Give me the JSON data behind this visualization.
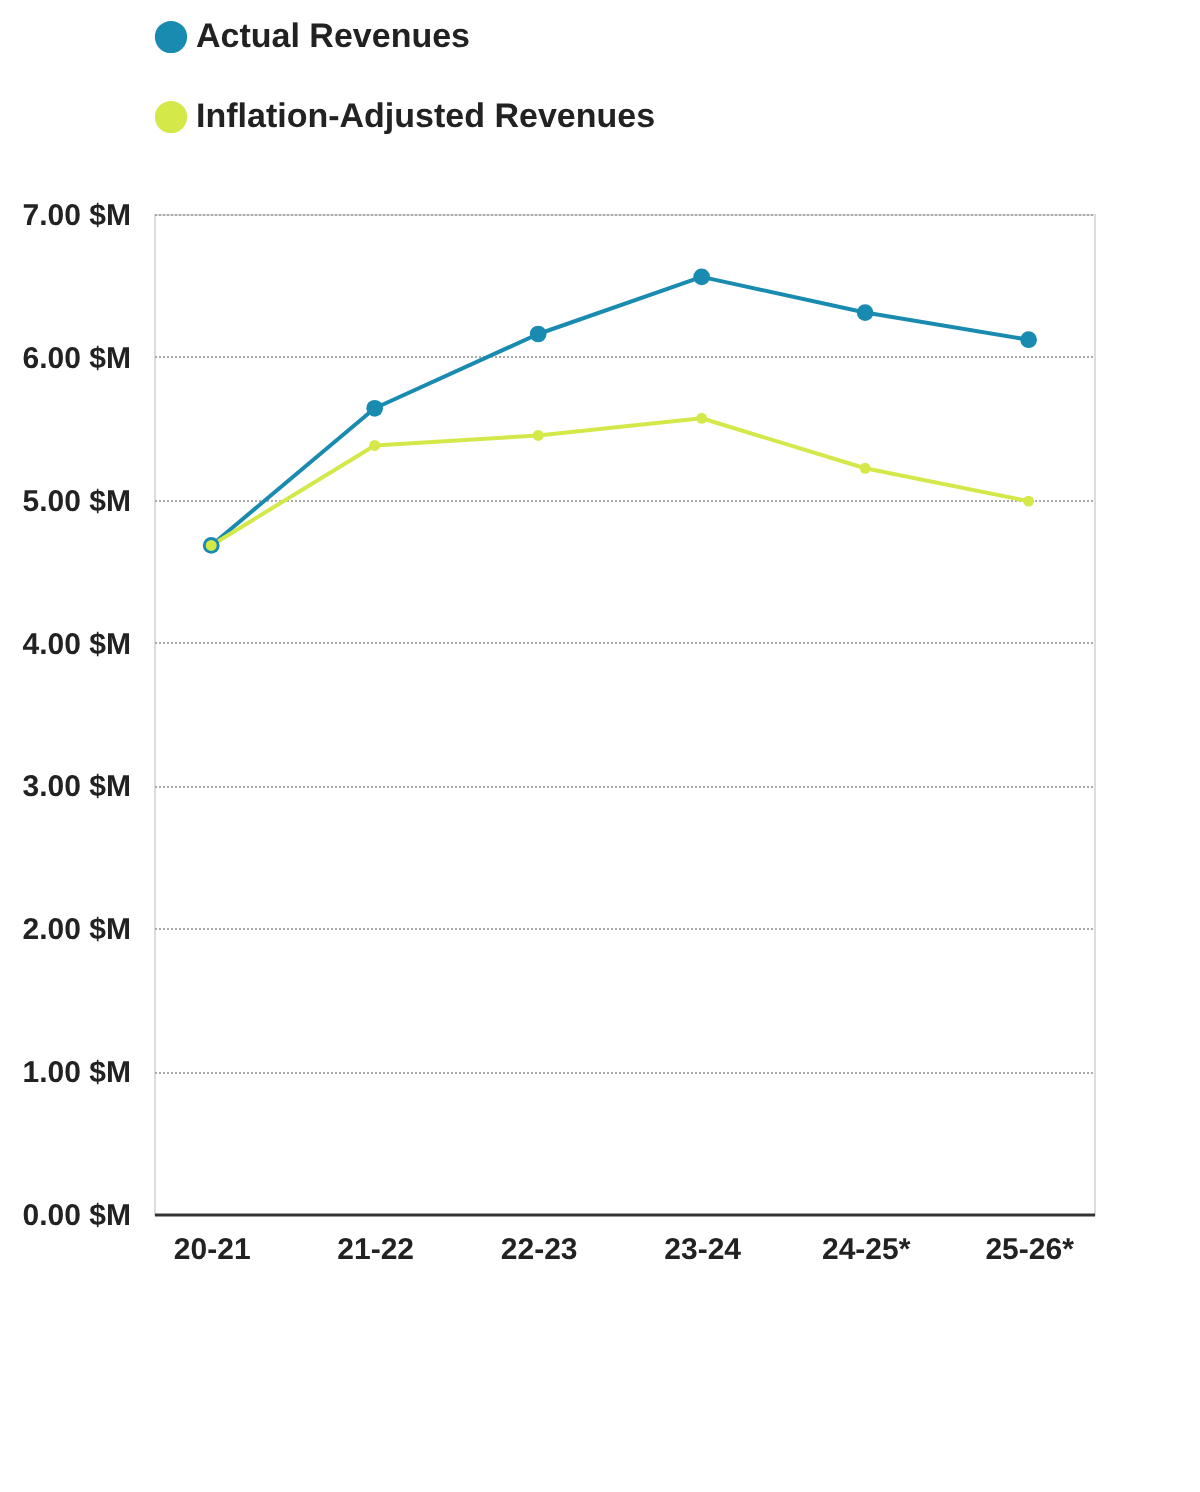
{
  "chart_data": {
    "type": "line",
    "categories": [
      "20-21",
      "21-22",
      "22-23",
      "23-24",
      "24-25*",
      "25-26*"
    ],
    "series": [
      {
        "name": "Actual Revenues",
        "color": "#1a8bb0",
        "values": [
          4.68,
          5.64,
          6.16,
          6.56,
          6.31,
          6.12
        ]
      },
      {
        "name": "Inflation-Adjusted Revenues",
        "color": "#d4e84a",
        "values": [
          4.68,
          5.38,
          5.45,
          5.57,
          5.22,
          4.99
        ]
      }
    ],
    "ylim": [
      0,
      7
    ],
    "yticks": [
      {
        "value": 0,
        "label": "0.00 $M"
      },
      {
        "value": 1,
        "label": "1.00 $M"
      },
      {
        "value": 2,
        "label": "2.00 $M"
      },
      {
        "value": 3,
        "label": "3.00 $M"
      },
      {
        "value": 4,
        "label": "4.00 $M"
      },
      {
        "value": 5,
        "label": "5.00 $M"
      },
      {
        "value": 6,
        "label": "6.00 $M"
      },
      {
        "value": 7,
        "label": "7.00 $M"
      }
    ],
    "grid": "y",
    "legend": "top",
    "marker": "circle",
    "line_style": "solid"
  }
}
